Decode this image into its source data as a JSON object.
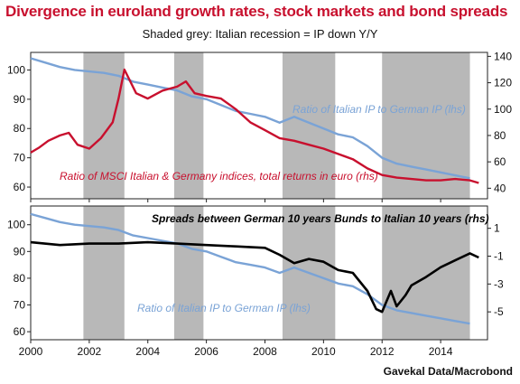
{
  "title": "Divergence in euroland growth rates, stock markets and bond spreads",
  "subtitle": "Shaded grey: Italian recession = IP down Y/Y",
  "source": "Gavekal Data/Macrobond",
  "colors": {
    "ip_ratio": "#7aa3d6",
    "msci_ratio": "#c8102e",
    "spread": "#000000",
    "recession": "#b8b8b8"
  },
  "chart_data": [
    {
      "type": "line",
      "x_axis": {
        "range": [
          2000.0,
          2015.6
        ],
        "ticks": [
          2000,
          2002,
          2004,
          2006,
          2008,
          2010,
          2012,
          2014
        ]
      },
      "y_left": {
        "range": [
          56,
          106
        ],
        "ticks": [
          60,
          70,
          80,
          90,
          100
        ]
      },
      "y_right": {
        "range": [
          32,
          143
        ],
        "ticks": [
          40,
          60,
          80,
          100,
          120,
          140
        ]
      },
      "recessions": [
        [
          2001.8,
          2003.2
        ],
        [
          2004.9,
          2005.9
        ],
        [
          2008.6,
          2010.4
        ],
        [
          2012.0,
          2015.0
        ]
      ],
      "annotations": [
        "Ratio of Italian IP to German IP (lhs)",
        "Ratio of MSCI Italian & Germany indices, total returns in euro (rhs)"
      ],
      "series": [
        {
          "name": "Ratio of Italian IP to German IP (lhs)",
          "axis": "left",
          "x": [
            2000.0,
            2000.5,
            2001.0,
            2001.5,
            2002.0,
            2002.5,
            2003.0,
            2003.5,
            2004.0,
            2004.5,
            2005.0,
            2005.5,
            2006.0,
            2006.5,
            2007.0,
            2007.5,
            2008.0,
            2008.5,
            2009.0,
            2009.5,
            2010.0,
            2010.5,
            2011.0,
            2011.5,
            2012.0,
            2012.5,
            2013.0,
            2013.5,
            2014.0,
            2014.5,
            2015.0
          ],
          "y": [
            104,
            102.5,
            101,
            100,
            99.5,
            99,
            98,
            96,
            95,
            94,
            93,
            91,
            90,
            88,
            86,
            85,
            84,
            82,
            84,
            82,
            80,
            78,
            77,
            74,
            70,
            68,
            67,
            66,
            65,
            64,
            63
          ]
        },
        {
          "name": "Ratio of MSCI Italian & Germany indices, total returns in euro (rhs)",
          "axis": "right",
          "x": [
            2000.0,
            2000.3,
            2000.6,
            2001.0,
            2001.3,
            2001.6,
            2002.0,
            2002.4,
            2002.8,
            2003.0,
            2003.2,
            2003.6,
            2004.0,
            2004.5,
            2005.0,
            2005.3,
            2005.6,
            2006.0,
            2006.5,
            2007.0,
            2007.5,
            2008.0,
            2008.5,
            2009.0,
            2009.5,
            2010.0,
            2010.5,
            2011.0,
            2011.5,
            2012.0,
            2012.5,
            2013.0,
            2013.5,
            2014.0,
            2014.5,
            2015.0,
            2015.3
          ],
          "y": [
            67,
            71,
            76,
            80,
            82,
            73,
            70,
            78,
            90,
            108,
            130,
            112,
            108,
            114,
            117,
            121,
            112,
            110,
            108,
            100,
            90,
            84,
            78,
            76,
            73,
            70,
            66,
            62,
            55,
            50,
            48,
            47,
            46,
            46,
            47,
            46,
            44
          ]
        }
      ]
    },
    {
      "type": "line",
      "x_axis": {
        "range": [
          2000.0,
          2015.6
        ],
        "ticks": [
          2000,
          2002,
          2004,
          2006,
          2008,
          2010,
          2012,
          2014
        ]
      },
      "y_left": {
        "range": [
          57,
          107
        ],
        "ticks": [
          60,
          70,
          80,
          90,
          100
        ]
      },
      "y_right": {
        "range": [
          -7.0,
          2.6
        ],
        "ticks": [
          1,
          -1,
          -3,
          -5
        ]
      },
      "recessions": [
        [
          2001.8,
          2003.2
        ],
        [
          2004.9,
          2005.9
        ],
        [
          2008.6,
          2010.4
        ],
        [
          2012.0,
          2015.0
        ]
      ],
      "annotations": [
        "Spreads between German 10 years Bunds to Italian 10 years (rhs)",
        "Ratio of Italian IP to German IP (lhs)"
      ],
      "series": [
        {
          "name": "Ratio of Italian IP to German IP (lhs)",
          "axis": "left",
          "x": [
            2000.0,
            2000.5,
            2001.0,
            2001.5,
            2002.0,
            2002.5,
            2003.0,
            2003.5,
            2004.0,
            2004.5,
            2005.0,
            2005.5,
            2006.0,
            2006.5,
            2007.0,
            2007.5,
            2008.0,
            2008.5,
            2009.0,
            2009.5,
            2010.0,
            2010.5,
            2011.0,
            2011.5,
            2012.0,
            2012.5,
            2013.0,
            2013.5,
            2014.0,
            2014.5,
            2015.0
          ],
          "y": [
            104,
            102.5,
            101,
            100,
            99.5,
            99,
            98,
            96,
            95,
            94,
            93,
            91,
            90,
            88,
            86,
            85,
            84,
            82,
            84,
            82,
            80,
            78,
            77,
            74,
            70,
            68,
            67,
            66,
            65,
            64,
            63
          ]
        },
        {
          "name": "Spreads between German 10 years Bunds to Italian 10 years (rhs)",
          "axis": "right",
          "x": [
            2000.0,
            2001.0,
            2002.0,
            2003.0,
            2004.0,
            2005.0,
            2006.0,
            2007.0,
            2008.0,
            2008.5,
            2009.0,
            2009.5,
            2010.0,
            2010.5,
            2011.0,
            2011.5,
            2011.8,
            2012.0,
            2012.3,
            2012.5,
            2012.8,
            2013.0,
            2013.5,
            2014.0,
            2014.5,
            2015.0,
            2015.3
          ],
          "y": [
            0.0,
            -0.2,
            -0.1,
            -0.1,
            0.0,
            -0.1,
            -0.2,
            -0.3,
            -0.4,
            -0.9,
            -1.5,
            -1.2,
            -1.4,
            -2.0,
            -2.2,
            -3.5,
            -4.8,
            -5.0,
            -3.5,
            -4.6,
            -3.8,
            -3.1,
            -2.5,
            -1.8,
            -1.3,
            -0.8,
            -1.1
          ]
        }
      ]
    }
  ]
}
